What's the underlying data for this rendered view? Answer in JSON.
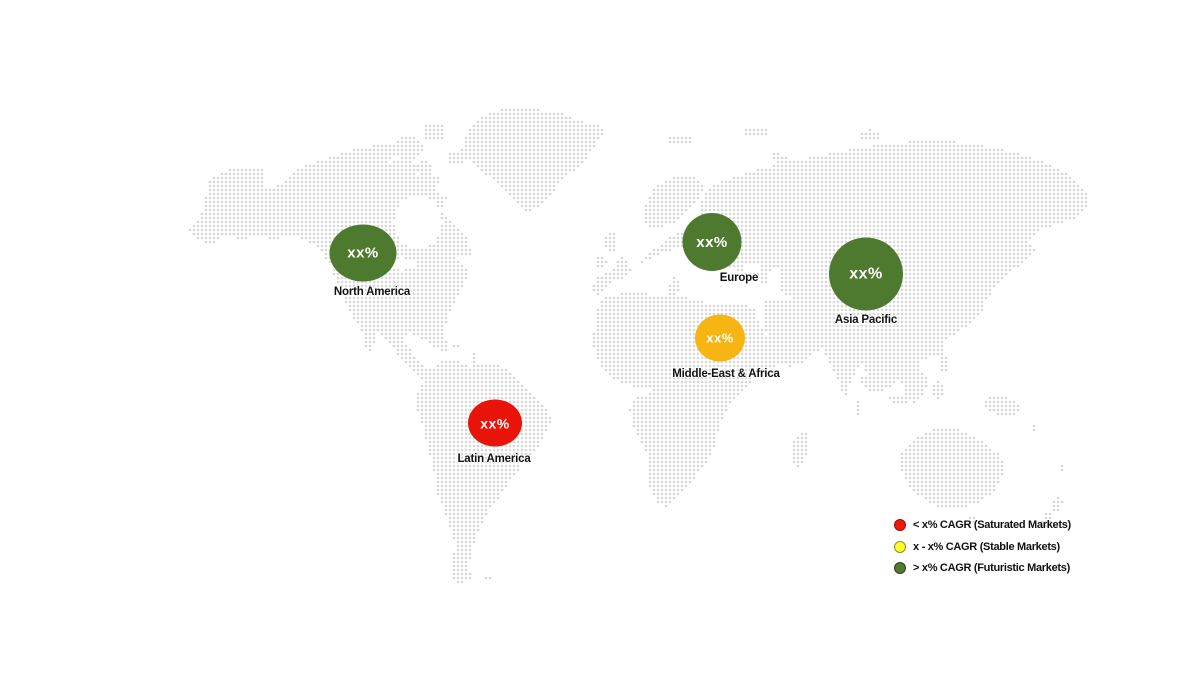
{
  "map": {
    "dot_color": "#cbcbcb",
    "background": "#ffffff"
  },
  "regions": [
    {
      "name": "North America",
      "value": "xx%",
      "color": "#4e7a2f",
      "category": "futuristic"
    },
    {
      "name": "Europe",
      "value": "xx%",
      "color": "#4e7a2f",
      "category": "futuristic"
    },
    {
      "name": "Asia Pacific",
      "value": "xx%",
      "color": "#4e7a2f",
      "category": "futuristic"
    },
    {
      "name": "Middle-East & Africa",
      "value": "xx%",
      "color": "#f6b513",
      "category": "stable"
    },
    {
      "name": "Latin America",
      "value": "xx%",
      "color": "#e81309",
      "category": "saturated"
    }
  ],
  "legend": {
    "items": [
      {
        "label": "< x% CAGR (Saturated Markets)",
        "color": "#ee1b0b",
        "border": "#9b0b04"
      },
      {
        "label": "x - x% CAGR (Stable Markets)",
        "color": "#fdfd33",
        "border": "#8f8f12"
      },
      {
        "label": "> x% CAGR (Futuristic Markets)",
        "color": "#537a33",
        "border": "#29451b"
      }
    ]
  }
}
